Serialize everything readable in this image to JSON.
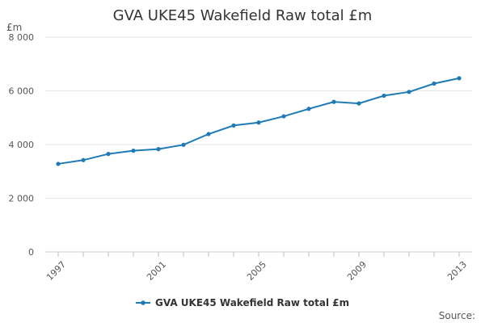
{
  "chart_data": {
    "type": "line",
    "title": "GVA UKE45 Wakefield Raw total £m",
    "unit_label": "£m",
    "x": [
      1997,
      1998,
      1999,
      2000,
      2001,
      2002,
      2003,
      2004,
      2005,
      2006,
      2007,
      2008,
      2009,
      2010,
      2011,
      2012,
      2013
    ],
    "x_tick_labels": [
      "1997",
      "2001",
      "2005",
      "2009",
      "2013"
    ],
    "x_tick_values": [
      1997,
      2001,
      2005,
      2009,
      2013
    ],
    "y_tick_labels": [
      "0",
      "2 000",
      "4 000",
      "6 000",
      "8 000"
    ],
    "y_tick_values": [
      0,
      2000,
      4000,
      6000,
      8000
    ],
    "ylim": [
      0,
      8000
    ],
    "grid": true,
    "legend_position": "bottom",
    "series": [
      {
        "name": "GVA UKE45 Wakefield Raw total £m",
        "color": "#1f7bb6",
        "values": [
          3280,
          3420,
          3650,
          3770,
          3830,
          3990,
          4390,
          4710,
          4820,
          5050,
          5330,
          5590,
          5530,
          5820,
          5960,
          6270,
          6470
        ]
      }
    ],
    "source_label": "Source:"
  }
}
